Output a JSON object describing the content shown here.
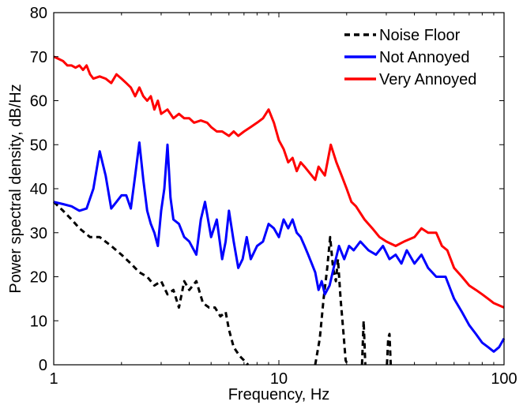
{
  "chart_data": {
    "type": "line",
    "title": "",
    "xlabel": "Frequency, Hz",
    "ylabel": "Power spectral density, dB/Hz",
    "x_scale": "log",
    "xlim": [
      1,
      100
    ],
    "ylim": [
      0,
      80
    ],
    "x_ticks": [
      1,
      10,
      100
    ],
    "x_tick_labels": [
      "1",
      "10",
      "100"
    ],
    "y_ticks": [
      0,
      10,
      20,
      30,
      40,
      50,
      60,
      70,
      80
    ],
    "y_tick_labels": [
      "0",
      "10",
      "20",
      "30",
      "40",
      "50",
      "60",
      "70",
      "80"
    ],
    "grid": false,
    "legend_position": "top-right",
    "series": [
      {
        "name": "Noise Floor",
        "color": "#000000",
        "line_style": "dashed",
        "segments": [
          [
            [
              1.0,
              37
            ],
            [
              1.1,
              35
            ],
            [
              1.2,
              33
            ],
            [
              1.3,
              31
            ],
            [
              1.45,
              29
            ],
            [
              1.6,
              29
            ],
            [
              1.8,
              27
            ],
            [
              2.0,
              25
            ],
            [
              2.2,
              23
            ],
            [
              2.4,
              21
            ],
            [
              2.6,
              20
            ],
            [
              2.8,
              18
            ],
            [
              3.0,
              19
            ],
            [
              3.2,
              16
            ],
            [
              3.4,
              17
            ],
            [
              3.6,
              13
            ],
            [
              3.8,
              19
            ],
            [
              4.0,
              17
            ],
            [
              4.3,
              19
            ],
            [
              4.6,
              14
            ],
            [
              4.9,
              13
            ],
            [
              5.2,
              13
            ],
            [
              5.5,
              11
            ],
            [
              5.8,
              12
            ],
            [
              6.0,
              8
            ],
            [
              6.3,
              4
            ],
            [
              6.7,
              2
            ],
            [
              7.0,
              1
            ],
            [
              7.3,
              0
            ]
          ],
          [
            [
              14.5,
              0
            ],
            [
              15.2,
              6
            ],
            [
              15.8,
              15
            ],
            [
              16.4,
              22
            ],
            [
              16.9,
              29
            ],
            [
              17.4,
              22
            ],
            [
              17.9,
              19
            ],
            [
              18.3,
              24
            ],
            [
              18.8,
              15
            ],
            [
              19.3,
              8
            ],
            [
              19.8,
              1
            ],
            [
              20.2,
              0
            ]
          ],
          [
            [
              23.4,
              0
            ],
            [
              23.8,
              10
            ],
            [
              24.2,
              0
            ]
          ],
          [
            [
              30.2,
              0
            ],
            [
              30.6,
              6
            ],
            [
              31.0,
              7
            ],
            [
              31.4,
              0
            ]
          ]
        ]
      },
      {
        "name": "Not Annoyed",
        "color": "#0000ff",
        "line_style": "solid",
        "segments": [
          [
            [
              1.0,
              37
            ],
            [
              1.1,
              36.5
            ],
            [
              1.2,
              36
            ],
            [
              1.3,
              35
            ],
            [
              1.4,
              35.5
            ],
            [
              1.5,
              40
            ],
            [
              1.6,
              48.5
            ],
            [
              1.7,
              43
            ],
            [
              1.8,
              35.5
            ],
            [
              1.9,
              37
            ],
            [
              2.0,
              38.5
            ],
            [
              2.1,
              38.5
            ],
            [
              2.2,
              35.5
            ],
            [
              2.3,
              43
            ],
            [
              2.4,
              50.5
            ],
            [
              2.5,
              42
            ],
            [
              2.6,
              35
            ],
            [
              2.7,
              32
            ],
            [
              2.8,
              30
            ],
            [
              2.9,
              27
            ],
            [
              3.0,
              35
            ],
            [
              3.1,
              40
            ],
            [
              3.2,
              50
            ],
            [
              3.3,
              38
            ],
            [
              3.4,
              33
            ],
            [
              3.6,
              32
            ],
            [
              3.8,
              29
            ],
            [
              4.0,
              28
            ],
            [
              4.3,
              25
            ],
            [
              4.5,
              33
            ],
            [
              4.7,
              37
            ],
            [
              5.0,
              29
            ],
            [
              5.3,
              33
            ],
            [
              5.6,
              24
            ],
            [
              5.8,
              28
            ],
            [
              6.0,
              35
            ],
            [
              6.3,
              28
            ],
            [
              6.6,
              22
            ],
            [
              6.9,
              24
            ],
            [
              7.2,
              29
            ],
            [
              7.5,
              24
            ],
            [
              8.0,
              27
            ],
            [
              8.5,
              28
            ],
            [
              9.0,
              32
            ],
            [
              9.5,
              31
            ],
            [
              10.0,
              29
            ],
            [
              10.5,
              33
            ],
            [
              11.0,
              31
            ],
            [
              11.5,
              33
            ],
            [
              12.0,
              30
            ],
            [
              12.5,
              29
            ],
            [
              13.0,
              27
            ],
            [
              13.5,
              25
            ],
            [
              14.0,
              23
            ],
            [
              14.5,
              21
            ],
            [
              15.0,
              17
            ],
            [
              15.5,
              19
            ],
            [
              16.0,
              16
            ],
            [
              16.8,
              18
            ],
            [
              17.5,
              22
            ],
            [
              18.5,
              27
            ],
            [
              19.5,
              24
            ],
            [
              20.5,
              27
            ],
            [
              21.5,
              26
            ],
            [
              23.0,
              28
            ],
            [
              25.0,
              26
            ],
            [
              27.0,
              25
            ],
            [
              29.0,
              27
            ],
            [
              31.0,
              24
            ],
            [
              33.0,
              25
            ],
            [
              35.0,
              23
            ],
            [
              37.0,
              26
            ],
            [
              40.0,
              23
            ],
            [
              43.0,
              25
            ],
            [
              46.0,
              22
            ],
            [
              50.0,
              20
            ],
            [
              55.0,
              20
            ],
            [
              60.0,
              15
            ],
            [
              65.0,
              12
            ],
            [
              70.0,
              9
            ],
            [
              75.0,
              7
            ],
            [
              80.0,
              5
            ],
            [
              85.0,
              4
            ],
            [
              90.0,
              3
            ],
            [
              95.0,
              4
            ],
            [
              100.0,
              6
            ]
          ]
        ]
      },
      {
        "name": "Very Annoyed",
        "color": "#ff0000",
        "line_style": "solid",
        "segments": [
          [
            [
              1.0,
              70
            ],
            [
              1.05,
              69.5
            ],
            [
              1.1,
              69
            ],
            [
              1.15,
              68
            ],
            [
              1.2,
              68
            ],
            [
              1.25,
              67.5
            ],
            [
              1.3,
              68
            ],
            [
              1.35,
              67
            ],
            [
              1.4,
              68
            ],
            [
              1.45,
              66
            ],
            [
              1.5,
              65
            ],
            [
              1.6,
              65.5
            ],
            [
              1.7,
              65
            ],
            [
              1.8,
              64
            ],
            [
              1.9,
              66
            ],
            [
              2.0,
              65
            ],
            [
              2.1,
              64
            ],
            [
              2.2,
              63
            ],
            [
              2.3,
              61
            ],
            [
              2.4,
              63
            ],
            [
              2.5,
              61
            ],
            [
              2.6,
              60
            ],
            [
              2.7,
              61
            ],
            [
              2.8,
              58
            ],
            [
              2.9,
              60
            ],
            [
              3.0,
              57
            ],
            [
              3.2,
              58
            ],
            [
              3.4,
              56
            ],
            [
              3.6,
              57
            ],
            [
              3.8,
              56
            ],
            [
              4.0,
              56
            ],
            [
              4.2,
              55
            ],
            [
              4.5,
              55.5
            ],
            [
              4.8,
              55
            ],
            [
              5.0,
              54
            ],
            [
              5.3,
              53
            ],
            [
              5.6,
              53
            ],
            [
              6.0,
              52
            ],
            [
              6.3,
              53
            ],
            [
              6.6,
              52
            ],
            [
              7.0,
              53
            ],
            [
              7.5,
              54
            ],
            [
              8.0,
              55
            ],
            [
              8.5,
              56
            ],
            [
              9.0,
              58
            ],
            [
              9.5,
              55
            ],
            [
              10.0,
              51
            ],
            [
              10.5,
              49
            ],
            [
              11.0,
              46
            ],
            [
              11.5,
              47
            ],
            [
              12.0,
              44
            ],
            [
              12.5,
              46
            ],
            [
              13.0,
              45
            ],
            [
              14.0,
              43
            ],
            [
              14.5,
              42
            ],
            [
              15.0,
              45
            ],
            [
              16.0,
              43
            ],
            [
              17.0,
              50
            ],
            [
              18.0,
              46
            ],
            [
              19.0,
              43
            ],
            [
              20.0,
              40
            ],
            [
              21.0,
              37
            ],
            [
              22.0,
              36
            ],
            [
              24.0,
              33
            ],
            [
              26.0,
              31
            ],
            [
              28.0,
              29
            ],
            [
              30.0,
              28
            ],
            [
              33.0,
              27
            ],
            [
              36.0,
              28
            ],
            [
              40.0,
              29
            ],
            [
              43.0,
              31
            ],
            [
              46.0,
              30
            ],
            [
              50.0,
              30
            ],
            [
              53.0,
              27
            ],
            [
              56.0,
              26
            ],
            [
              60.0,
              22
            ],
            [
              65.0,
              20
            ],
            [
              70.0,
              18
            ],
            [
              75.0,
              17
            ],
            [
              80.0,
              16
            ],
            [
              85.0,
              15
            ],
            [
              90.0,
              14
            ],
            [
              95.0,
              13.5
            ],
            [
              100.0,
              13
            ]
          ]
        ]
      }
    ]
  }
}
